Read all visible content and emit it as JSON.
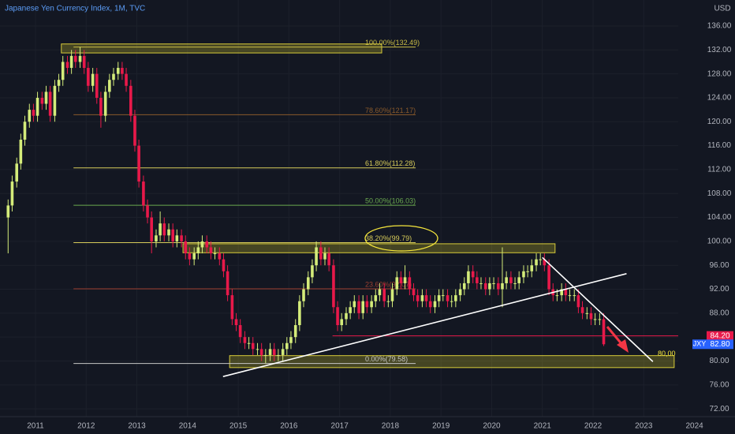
{
  "chart_data": {
    "type": "candlestick",
    "title": "Japanese Yen Currency Index, 1M, TVC",
    "currency": "USD",
    "symbol": "JXY",
    "xlim": [
      2010.3,
      2024.8
    ],
    "ylim": [
      70.7,
      140.35
    ],
    "xticks": [
      2011,
      2012,
      2013,
      2014,
      2015,
      2016,
      2017,
      2018,
      2019,
      2020,
      2021,
      2022,
      2023,
      2024
    ],
    "yticks": [
      {
        "value": 72,
        "label": "72.00"
      },
      {
        "value": 76,
        "label": "76.00"
      },
      {
        "value": 80,
        "label": "80.00"
      },
      {
        "value": 84,
        "label": "84.00"
      },
      {
        "value": 88,
        "label": "88.00"
      },
      {
        "value": 92,
        "label": "92.00"
      },
      {
        "value": 96,
        "label": "96.00"
      },
      {
        "value": 100,
        "label": "100.00"
      },
      {
        "value": 104,
        "label": "104.00"
      },
      {
        "value": 108,
        "label": "108.00"
      },
      {
        "value": 112,
        "label": "112.00"
      },
      {
        "value": 116,
        "label": "116.00"
      },
      {
        "value": 120,
        "label": "120.00"
      },
      {
        "value": 124,
        "label": "124.00"
      },
      {
        "value": 128,
        "label": "128.00"
      },
      {
        "value": 132,
        "label": "132.00"
      },
      {
        "value": 136,
        "label": "136.00"
      }
    ],
    "grid": true,
    "up_color": "#d4ec7a",
    "down_color": "#e8194a",
    "x": [
      2010.46,
      2010.54,
      2010.63,
      2010.71,
      2010.79,
      2010.88,
      2010.96,
      2011.04,
      2011.13,
      2011.21,
      2011.29,
      2011.38,
      2011.46,
      2011.54,
      2011.63,
      2011.71,
      2011.79,
      2011.88,
      2011.96,
      2012.04,
      2012.13,
      2012.21,
      2012.29,
      2012.38,
      2012.46,
      2012.54,
      2012.63,
      2012.71,
      2012.79,
      2012.88,
      2012.96,
      2013.04,
      2013.13,
      2013.21,
      2013.29,
      2013.38,
      2013.46,
      2013.54,
      2013.63,
      2013.71,
      2013.79,
      2013.88,
      2013.96,
      2014.04,
      2014.13,
      2014.21,
      2014.29,
      2014.38,
      2014.46,
      2014.54,
      2014.63,
      2014.71,
      2014.79,
      2014.88,
      2014.96,
      2015.04,
      2015.13,
      2015.21,
      2015.29,
      2015.38,
      2015.46,
      2015.54,
      2015.63,
      2015.71,
      2015.79,
      2015.88,
      2015.96,
      2016.04,
      2016.13,
      2016.21,
      2016.29,
      2016.38,
      2016.46,
      2016.54,
      2016.63,
      2016.71,
      2016.79,
      2016.88,
      2016.96,
      2017.04,
      2017.13,
      2017.21,
      2017.29,
      2017.38,
      2017.46,
      2017.54,
      2017.63,
      2017.71,
      2017.79,
      2017.88,
      2017.96,
      2018.04,
      2018.13,
      2018.21,
      2018.29,
      2018.38,
      2018.46,
      2018.54,
      2018.63,
      2018.71,
      2018.79,
      2018.88,
      2018.96,
      2019.04,
      2019.13,
      2019.21,
      2019.29,
      2019.38,
      2019.46,
      2019.54,
      2019.63,
      2019.71,
      2019.79,
      2019.88,
      2019.96,
      2020.04,
      2020.13,
      2020.21,
      2020.29,
      2020.38,
      2020.46,
      2020.54,
      2020.63,
      2020.71,
      2020.79,
      2020.88,
      2020.96,
      2021.04,
      2021.13,
      2021.21,
      2021.29,
      2021.38,
      2021.46,
      2021.54,
      2021.63,
      2021.71,
      2021.79,
      2021.88,
      2021.96,
      2022.04,
      2022.13,
      2022.21
    ],
    "open": [
      104,
      106,
      110,
      113,
      117,
      120,
      122,
      121,
      124,
      123,
      125,
      121,
      126,
      127,
      130,
      129,
      131,
      130,
      131,
      129,
      126,
      128,
      124,
      121,
      125,
      127,
      128,
      129,
      128,
      126,
      121,
      116,
      110,
      106,
      104,
      100,
      101,
      103,
      101,
      102,
      100,
      101,
      100,
      98,
      97,
      98,
      99,
      100,
      99,
      98,
      98,
      97,
      95,
      91,
      87,
      86,
      84,
      83,
      83,
      82,
      82,
      81,
      81,
      82,
      81,
      81,
      82,
      83,
      84,
      86,
      90,
      92,
      94,
      96,
      99,
      97,
      98,
      96,
      89,
      86,
      87,
      88,
      89,
      90,
      88,
      90,
      89,
      90,
      91,
      92,
      90,
      90,
      92,
      94,
      93,
      94,
      92,
      91,
      90,
      91,
      90,
      89,
      90,
      91,
      91,
      90,
      90,
      91,
      92,
      93,
      95,
      94,
      93,
      93,
      92,
      93,
      93,
      92,
      93,
      94,
      93,
      93,
      94,
      95,
      95,
      96,
      97,
      97,
      96,
      92,
      91,
      91,
      92,
      91,
      91,
      91,
      89,
      88,
      88,
      87,
      87,
      87
    ],
    "high": [
      107,
      111,
      114,
      118,
      121,
      123,
      123,
      125,
      125,
      126,
      126,
      127,
      128,
      131,
      131,
      132,
      132,
      132.5,
      132,
      130,
      129,
      129,
      125,
      126,
      128,
      129,
      130,
      130,
      129,
      127,
      122,
      117,
      111,
      107,
      105,
      102,
      105,
      104,
      103,
      103,
      102,
      102,
      101,
      99,
      99,
      100,
      101,
      101,
      100,
      99,
      99,
      98,
      96,
      92,
      88,
      87,
      85,
      84,
      84,
      83,
      83,
      82,
      83,
      83,
      82,
      83,
      84,
      85,
      87,
      91,
      93,
      95,
      97,
      100,
      100,
      99,
      99,
      97,
      90,
      88,
      89,
      90,
      91,
      91,
      91,
      91,
      91,
      92,
      93,
      93,
      91,
      93,
      95,
      95,
      96,
      95,
      93,
      92,
      92,
      92,
      91,
      91,
      92,
      92,
      92,
      91,
      92,
      93,
      94,
      96,
      96,
      95,
      94,
      94,
      94,
      94,
      94,
      99,
      95,
      95,
      94,
      95,
      96,
      96,
      97,
      98,
      98,
      98,
      97,
      93,
      92,
      93,
      93,
      92,
      92,
      92,
      90,
      89,
      89,
      88,
      88,
      88
    ],
    "low": [
      98,
      105,
      109,
      112,
      116,
      119,
      120,
      120,
      122,
      122,
      120,
      120,
      125,
      126,
      128,
      128,
      129,
      129,
      128,
      125,
      125,
      123,
      119,
      120,
      124,
      126,
      127,
      127,
      125,
      120,
      115,
      109,
      105,
      103,
      98,
      99,
      100,
      100,
      100,
      99,
      99,
      99,
      97,
      96,
      96,
      97,
      98,
      98,
      97,
      97,
      96,
      94,
      90,
      86,
      85,
      83,
      82,
      82,
      81,
      81,
      80,
      79.6,
      80,
      80,
      80,
      80,
      81,
      82,
      83,
      85,
      89,
      91,
      93,
      95,
      96,
      96,
      95,
      88,
      85,
      85,
      86,
      87,
      88,
      87,
      87,
      88,
      88,
      89,
      90,
      89,
      89,
      89,
      91,
      92,
      92,
      91,
      90,
      89,
      89,
      89,
      88,
      88,
      89,
      90,
      89,
      89,
      89,
      90,
      91,
      92,
      93,
      92,
      92,
      91,
      91,
      92,
      91,
      89,
      92,
      92,
      92,
      92,
      93,
      94,
      94,
      95,
      96,
      95,
      91,
      90,
      90,
      90,
      90,
      90,
      90,
      88,
      87,
      87,
      86,
      86,
      86,
      82.5
    ],
    "close": [
      106,
      110,
      113,
      117,
      120,
      122,
      121,
      124,
      123,
      125,
      121,
      126,
      127,
      130,
      129,
      131,
      130,
      131,
      129,
      126,
      128,
      124,
      121,
      125,
      127,
      128,
      129,
      128,
      126,
      121,
      116,
      110,
      106,
      104,
      100,
      101,
      103,
      101,
      102,
      100,
      101,
      100,
      98,
      97,
      98,
      99,
      100,
      99,
      98,
      98,
      97,
      95,
      91,
      87,
      86,
      84,
      83,
      83,
      82,
      82,
      81,
      81,
      82,
      81,
      81,
      82,
      83,
      84,
      86,
      90,
      92,
      94,
      96,
      99,
      97,
      98,
      96,
      89,
      86,
      87,
      88,
      89,
      90,
      88,
      90,
      89,
      90,
      91,
      92,
      90,
      90,
      92,
      94,
      93,
      94,
      92,
      91,
      90,
      91,
      90,
      89,
      90,
      91,
      91,
      90,
      90,
      91,
      92,
      93,
      95,
      94,
      93,
      93,
      92,
      93,
      93,
      92,
      93,
      94,
      93,
      93,
      94,
      95,
      95,
      96,
      97,
      97,
      96,
      92,
      91,
      91,
      92,
      91,
      91,
      91,
      89,
      88,
      88,
      87,
      87,
      87,
      82.8
    ],
    "fib": {
      "from": 2011.75,
      "to": 2018.5,
      "levels": [
        {
          "value": 132.49,
          "label": "100.00%(132.49)",
          "color": "#c9bc45"
        },
        {
          "value": 121.17,
          "label": "78.60%(121.17)",
          "color": "#8a5a2b"
        },
        {
          "value": 112.28,
          "label": "61.80%(112.28)",
          "color": "#d8cc5a"
        },
        {
          "value": 106.03,
          "label": "50.00%(106.03)",
          "color": "#6aa84f"
        },
        {
          "value": 99.79,
          "label": "38.20%(99.79)",
          "color": "#d8cc5a"
        },
        {
          "value": 92.07,
          "label": "23.60%(92.07)",
          "color": "#9c3f30"
        },
        {
          "value": 79.58,
          "label": "0.00%(79.58)",
          "color": "#c8c8c8"
        }
      ]
    },
    "zones": [
      {
        "from": 2011.51,
        "to": 2017.83,
        "low": 131.5,
        "high": 133
      },
      {
        "from": 2013.91,
        "to": 2021.25,
        "low": 98.1,
        "high": 99.6
      },
      {
        "from": 2014.83,
        "to": 2023.6,
        "low": 78.9,
        "high": 80.9
      }
    ],
    "trendlines": [
      {
        "x": [
          2014.7,
          2022.66
        ],
        "y": [
          77.4,
          94.6
        ]
      },
      {
        "x": [
          2021.0,
          2023.18
        ],
        "y": [
          97.3,
          79.9
        ]
      }
    ],
    "level_line": {
      "from": 2016.86,
      "value": 84.2,
      "label": "84.20",
      "color": "#e8194a"
    },
    "last_price": {
      "value": 82.8,
      "label": "82.80",
      "color": "#2962ff"
    },
    "annotation": {
      "label": "80,00",
      "x": 2023.45,
      "y": 81.2,
      "color": "#f5e63c"
    }
  }
}
